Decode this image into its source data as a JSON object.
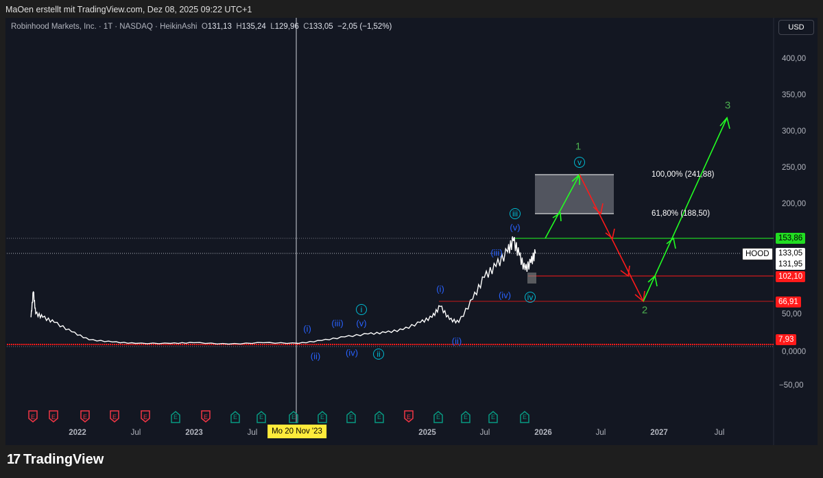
{
  "caption": "MaOen erstellt mit TradingView.com, Dez 08, 2025 09:22 UTC+1",
  "legend": {
    "symbol": "Robinhood Markets, Inc. · 1T · NASDAQ · HeikinAshi",
    "o_label": "O",
    "o": "131,13",
    "h_label": "H",
    "h": "135,24",
    "l_label": "L",
    "l": "129,96",
    "c_label": "C",
    "c": "133,05",
    "change": "−2,05 (−1,52%)"
  },
  "currency": "USD",
  "price_axis": [
    "400,00",
    "350,00",
    "300,00",
    "250,00",
    "200,00",
    "50,00",
    "0,0000",
    "−50,00"
  ],
  "price_tags": {
    "resistance": "153,86",
    "ticker": "HOOD",
    "last": "133,05",
    "prev": "131,95",
    "s1": "102,10",
    "s2": "66,91",
    "s3": "7,93"
  },
  "time_axis": [
    "2022",
    "Jul",
    "2023",
    "Jul",
    "2025",
    "Jul",
    "2026",
    "Jul",
    "2027",
    "Jul"
  ],
  "crosshair_date": "Mo 20 Nov '23",
  "fib": {
    "top": "100,00% (241,88)",
    "bottom": "61,80% (188,50)"
  },
  "waves": {
    "minor": [
      "(i)",
      "(ii)",
      "(iii)",
      "(iv)",
      "(v)",
      "(i)",
      "(ii)",
      "(iii)",
      "(iv)",
      "(v)"
    ],
    "minute": [
      "i",
      "ii",
      "iii",
      "iv",
      "v"
    ],
    "primary": [
      "1",
      "2",
      "3"
    ]
  },
  "events": [
    "E",
    "E",
    "E",
    "E",
    "E",
    "E",
    "E",
    "E",
    "E",
    "E",
    "E",
    "E",
    "E",
    "E",
    "E",
    "E",
    "E",
    "E"
  ],
  "colors": {
    "up": "#22ff22",
    "down": "#ff1a1a",
    "wave": "#2962ff",
    "circle": "#00bcd4",
    "primary": "#4caf50"
  },
  "brand": "TradingView",
  "chart_data": {
    "type": "line",
    "series": [
      {
        "name": "HOOD",
        "x": [
          2021.6,
          2021.62,
          2021.64,
          2021.7,
          2021.8,
          2021.95,
          2022.1,
          2022.3,
          2022.5,
          2022.8,
          2023.0,
          2023.3,
          2023.6,
          2023.9,
          2024.1,
          2024.3,
          2024.5,
          2024.65,
          2024.8,
          2024.95,
          2025.05,
          2025.12,
          2025.2,
          2025.28,
          2025.4,
          2025.5,
          2025.6,
          2025.7,
          2025.75,
          2025.8,
          2025.85,
          2025.9,
          2025.94
        ],
        "y": [
          45,
          80,
          50,
          45,
          38,
          25,
          14,
          11,
          9,
          9,
          10,
          8,
          10,
          9,
          13,
          18,
          22,
          24,
          28,
          38,
          45,
          60,
          42,
          38,
          70,
          100,
          115,
          135,
          150,
          130,
          110,
          120,
          133
        ]
      }
    ],
    "ylim": [
      -60,
      420
    ]
  }
}
